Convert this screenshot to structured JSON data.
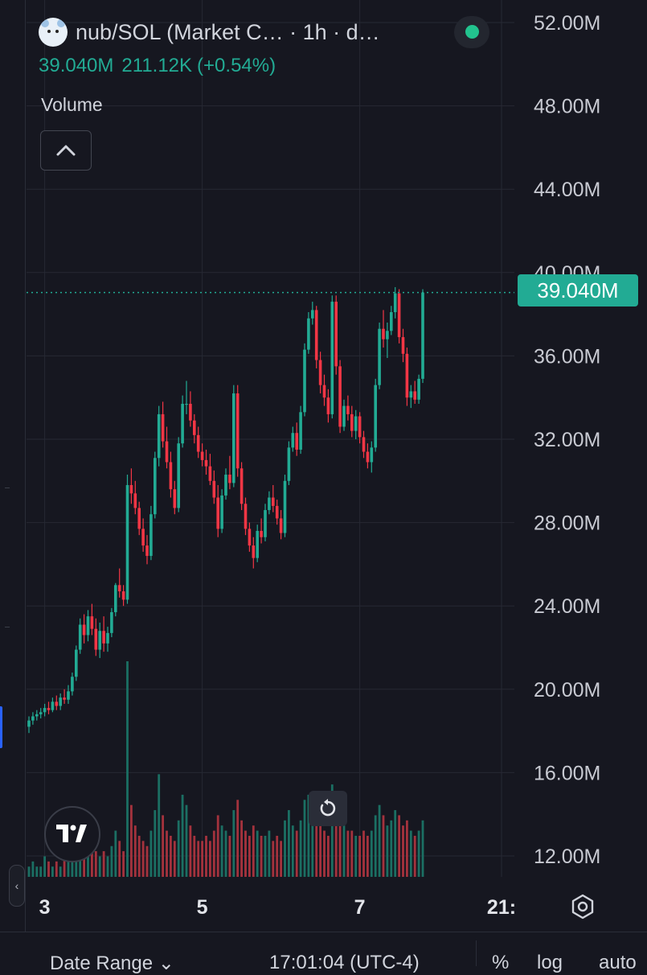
{
  "header": {
    "symbol_title": "nub/SOL (Market C… · 1h · d…",
    "ohlc": {
      "value": "39.040M",
      "change": "211.12K",
      "change_pct": "(+0.54%)"
    },
    "status": "live"
  },
  "volume_label": "Volume",
  "last_price_label": "39.040M",
  "bottom_bar": {
    "date_range": "Date Range",
    "time": "17:01:04 (UTC-4)",
    "percent": "%",
    "log": "log",
    "auto": "auto"
  },
  "icons": {
    "symbol_logo": "cat-logo-icon",
    "status": "status-dot-icon",
    "collapse": "chevron-up-icon",
    "tv_logo": "tradingview-logo-icon",
    "reset": "reset-icon",
    "settings": "gear-icon",
    "panel_toggle": "chevron-left-icon"
  },
  "colors": {
    "up": "#22ab94",
    "down": "#f23645",
    "background": "#161720",
    "grid": "#262833"
  },
  "chart_data": {
    "type": "candlestick",
    "title": "nub/SOL (Market C… · 1h · d…",
    "ylim": [
      10000000,
      54000000
    ],
    "y_ticks": [
      "52.00M",
      "48.00M",
      "44.00M",
      "40.00M",
      "36.00M",
      "32.00M",
      "28.00M",
      "24.00M",
      "20.00M",
      "16.00M",
      "12.00M"
    ],
    "y_tick_values": [
      52,
      48,
      44,
      40,
      36,
      32,
      28,
      24,
      20,
      16,
      12
    ],
    "x_ticks": [
      "3",
      "5",
      "7",
      "21:"
    ],
    "x_tick_index": [
      4,
      44,
      84,
      120
    ],
    "last_price": 39040000,
    "series": [
      {
        "name": "nub/SOL",
        "values": [
          [
            18.2,
            18.7,
            17.9,
            18.5
          ],
          [
            18.5,
            18.9,
            18.3,
            18.7
          ],
          [
            18.7,
            19.0,
            18.5,
            18.8
          ],
          [
            18.8,
            19.1,
            18.6,
            18.9
          ],
          [
            18.9,
            19.3,
            18.7,
            19.1
          ],
          [
            19.1,
            19.4,
            18.8,
            19.0
          ],
          [
            19.0,
            19.6,
            18.9,
            19.4
          ],
          [
            19.4,
            19.7,
            19.0,
            19.2
          ],
          [
            19.2,
            19.8,
            19.0,
            19.6
          ],
          [
            19.6,
            20.0,
            19.3,
            19.5
          ],
          [
            19.5,
            20.2,
            19.3,
            19.9
          ],
          [
            19.9,
            20.8,
            19.7,
            20.6
          ],
          [
            20.6,
            22.1,
            20.4,
            21.9
          ],
          [
            21.9,
            23.4,
            21.7,
            23.1
          ],
          [
            23.1,
            23.6,
            22.2,
            22.6
          ],
          [
            22.6,
            23.8,
            22.3,
            23.5
          ],
          [
            23.5,
            24.1,
            22.6,
            22.9
          ],
          [
            22.9,
            23.4,
            21.6,
            21.9
          ],
          [
            21.9,
            23.2,
            21.5,
            22.8
          ],
          [
            22.8,
            23.5,
            21.8,
            22.2
          ],
          [
            22.2,
            23.0,
            21.8,
            22.7
          ],
          [
            22.7,
            23.9,
            22.5,
            23.7
          ],
          [
            23.7,
            25.1,
            23.5,
            25.0
          ],
          [
            25.0,
            25.8,
            24.4,
            24.7
          ],
          [
            24.7,
            25.0,
            24.0,
            24.3
          ],
          [
            24.3,
            30.3,
            24.1,
            29.8
          ],
          [
            29.8,
            30.6,
            28.9,
            29.4
          ],
          [
            29.4,
            30.0,
            28.4,
            28.7
          ],
          [
            28.7,
            29.0,
            27.4,
            27.7
          ],
          [
            27.7,
            28.2,
            26.6,
            26.9
          ],
          [
            26.9,
            27.4,
            26.0,
            26.4
          ],
          [
            26.4,
            28.8,
            26.2,
            28.4
          ],
          [
            28.4,
            31.4,
            28.2,
            31.1
          ],
          [
            31.1,
            33.6,
            30.7,
            33.2
          ],
          [
            33.2,
            33.8,
            31.6,
            31.9
          ],
          [
            31.9,
            32.6,
            30.6,
            30.9
          ],
          [
            30.9,
            31.4,
            29.2,
            29.6
          ],
          [
            29.6,
            30.0,
            28.4,
            28.7
          ],
          [
            28.7,
            32.1,
            28.5,
            31.8
          ],
          [
            31.8,
            34.1,
            31.6,
            33.7
          ],
          [
            33.7,
            34.8,
            33.2,
            33.7
          ],
          [
            33.7,
            34.3,
            32.6,
            32.9
          ],
          [
            32.9,
            33.2,
            31.8,
            32.2
          ],
          [
            32.2,
            32.6,
            31.1,
            31.4
          ],
          [
            31.4,
            31.8,
            30.7,
            31.0
          ],
          [
            31.0,
            31.5,
            30.3,
            30.7
          ],
          [
            30.7,
            31.3,
            29.8,
            30.0
          ],
          [
            30.0,
            30.5,
            28.9,
            29.2
          ],
          [
            29.2,
            29.8,
            27.3,
            27.7
          ],
          [
            27.7,
            29.6,
            27.5,
            29.3
          ],
          [
            29.3,
            30.6,
            29.1,
            30.3
          ],
          [
            30.3,
            31.2,
            29.6,
            29.9
          ],
          [
            29.9,
            34.6,
            29.7,
            34.2
          ],
          [
            34.2,
            34.6,
            30.2,
            30.6
          ],
          [
            30.6,
            30.9,
            28.6,
            28.9
          ],
          [
            28.9,
            29.2,
            27.4,
            27.7
          ],
          [
            27.7,
            28.0,
            26.6,
            26.9
          ],
          [
            26.9,
            27.3,
            25.8,
            26.3
          ],
          [
            26.3,
            27.9,
            26.1,
            27.6
          ],
          [
            27.6,
            28.2,
            27.0,
            27.3
          ],
          [
            27.3,
            28.9,
            27.1,
            28.6
          ],
          [
            28.6,
            29.5,
            28.4,
            29.2
          ],
          [
            29.2,
            29.8,
            28.5,
            28.8
          ],
          [
            28.8,
            29.1,
            27.9,
            28.2
          ],
          [
            28.2,
            28.6,
            27.2,
            27.5
          ],
          [
            27.5,
            30.3,
            27.3,
            30.0
          ],
          [
            30.0,
            31.9,
            29.8,
            31.6
          ],
          [
            31.6,
            32.6,
            31.4,
            32.3
          ],
          [
            32.3,
            32.8,
            31.2,
            31.5
          ],
          [
            31.5,
            33.6,
            31.3,
            33.3
          ],
          [
            33.3,
            36.6,
            33.1,
            36.3
          ],
          [
            36.3,
            38.1,
            36.1,
            37.8
          ],
          [
            37.8,
            38.6,
            37.5,
            38.2
          ],
          [
            38.2,
            38.4,
            35.4,
            35.8
          ],
          [
            35.8,
            36.2,
            34.2,
            34.6
          ],
          [
            34.6,
            35.1,
            33.6,
            34.0
          ],
          [
            34.0,
            34.4,
            32.8,
            33.2
          ],
          [
            33.2,
            38.9,
            33.0,
            38.6
          ],
          [
            38.6,
            38.9,
            35.1,
            35.5
          ],
          [
            35.5,
            35.8,
            32.3,
            32.6
          ],
          [
            32.6,
            33.9,
            32.4,
            33.6
          ],
          [
            33.6,
            34.1,
            32.9,
            33.2
          ],
          [
            33.2,
            33.6,
            32.1,
            32.4
          ],
          [
            32.4,
            33.4,
            32.0,
            33.1
          ],
          [
            33.1,
            33.3,
            31.8,
            32.1
          ],
          [
            32.1,
            32.4,
            31.1,
            31.4
          ],
          [
            31.4,
            31.8,
            30.6,
            30.9
          ],
          [
            30.9,
            31.9,
            30.4,
            31.6
          ],
          [
            31.6,
            34.9,
            31.4,
            34.6
          ],
          [
            34.6,
            37.6,
            34.4,
            37.3
          ],
          [
            37.3,
            38.2,
            36.4,
            36.8
          ],
          [
            36.8,
            37.6,
            35.9,
            37.2
          ],
          [
            37.2,
            38.4,
            37.0,
            38.1
          ],
          [
            38.1,
            39.3,
            37.8,
            39.0
          ],
          [
            39.0,
            39.2,
            36.6,
            36.9
          ],
          [
            36.9,
            37.3,
            35.7,
            36.1
          ],
          [
            36.1,
            36.4,
            33.6,
            34.0
          ],
          [
            34.0,
            34.6,
            33.5,
            34.3
          ],
          [
            34.3,
            34.8,
            33.7,
            33.9
          ],
          [
            33.9,
            35.1,
            33.7,
            34.9
          ],
          [
            34.9,
            39.2,
            34.7,
            39.04
          ]
        ],
        "volume": [
          2,
          3,
          2,
          2,
          4,
          3,
          2,
          3,
          2,
          4,
          3,
          5,
          6,
          7,
          5,
          6,
          6,
          5,
          4,
          5,
          4,
          6,
          9,
          7,
          5,
          42,
          14,
          10,
          8,
          7,
          6,
          9,
          13,
          20,
          12,
          9,
          8,
          7,
          11,
          16,
          14,
          10,
          8,
          7,
          7,
          8,
          7,
          9,
          12,
          10,
          9,
          8,
          13,
          15,
          11,
          9,
          8,
          10,
          9,
          8,
          8,
          9,
          7,
          8,
          7,
          11,
          13,
          10,
          9,
          11,
          15,
          16,
          13,
          12,
          10,
          9,
          8,
          18,
          14,
          12,
          10,
          9,
          9,
          8,
          8,
          9,
          8,
          9,
          12,
          14,
          12,
          10,
          11,
          13,
          12,
          10,
          11,
          9,
          8,
          9,
          11
        ]
      }
    ]
  }
}
